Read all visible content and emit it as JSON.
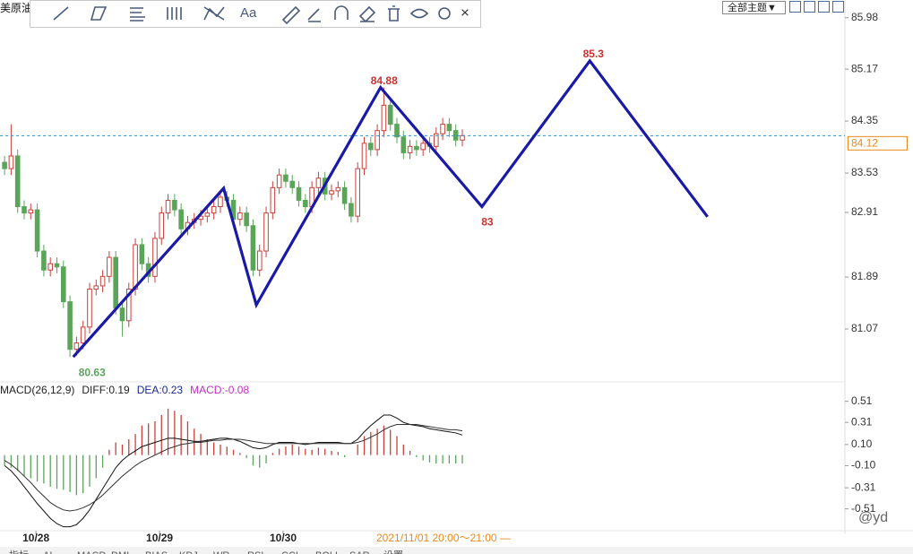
{
  "symbol": "美原油",
  "toolbar": {
    "font_button": "Aa",
    "close": "×"
  },
  "theme_button": "全部主题▼",
  "time_label": "2021/11/01 20:00～21:00 —",
  "tabs": [
    "指标",
    "AI",
    "MACD",
    "DMI",
    "BIAS",
    "KDJ",
    "WR",
    "RSI",
    "CCI",
    "BOLL",
    "SAR",
    "设置"
  ],
  "watermark": "@yd",
  "chart_data": [
    {
      "type": "candlestick",
      "up_color": "#c9403c",
      "down_color": "#5aa55a",
      "xlim": [
        -0.7,
        128.1
      ],
      "ylim": [
        80.25,
        86.26
      ],
      "yticks": [
        85.98,
        85.17,
        84.35,
        83.53,
        82.91,
        81.89,
        81.07
      ],
      "xticks": [
        {
          "value": 4.8,
          "label": "10/28"
        },
        {
          "value": 23.7,
          "label": "10/29"
        },
        {
          "value": 42.6,
          "label": "10/30"
        }
      ],
      "last": 84.12,
      "x": [
        0,
        1,
        2,
        3,
        4,
        5,
        6,
        7,
        8,
        9,
        10,
        11,
        12,
        13,
        14,
        15,
        16,
        17,
        18,
        19,
        20,
        21,
        22,
        23,
        24,
        25,
        26,
        27,
        28,
        29,
        30,
        31,
        32,
        33,
        34,
        35,
        36,
        37,
        38,
        39,
        40,
        41,
        42,
        43,
        44,
        45,
        46,
        47,
        48,
        49,
        50,
        51,
        52,
        53,
        54,
        55,
        56,
        57,
        58,
        59,
        60,
        61,
        62,
        63,
        64,
        65,
        66,
        67,
        68,
        69,
        70
      ],
      "open": [
        83.7,
        83.6,
        83.8,
        83.0,
        82.9,
        82.95,
        82.3,
        82.0,
        82.1,
        82.05,
        81.5,
        80.75,
        80.85,
        81.1,
        81.7,
        81.75,
        81.9,
        82.2,
        81.4,
        81.2,
        81.7,
        82.4,
        82.1,
        81.9,
        82.5,
        82.9,
        83.1,
        82.95,
        82.65,
        82.75,
        82.8,
        82.85,
        82.9,
        83.0,
        83.15,
        83.1,
        82.8,
        82.9,
        82.7,
        82.0,
        82.3,
        82.9,
        83.3,
        83.5,
        83.4,
        83.3,
        83.1,
        83.0,
        83.3,
        83.45,
        83.2,
        83.25,
        83.3,
        83.05,
        82.85,
        83.6,
        84.0,
        83.9,
        84.2,
        84.6,
        84.3,
        84.1,
        83.85,
        83.95,
        83.9,
        84.0,
        83.95,
        84.15,
        84.3,
        84.2,
        84.05
      ],
      "high": [
        83.8,
        84.3,
        83.9,
        83.1,
        83.05,
        83.05,
        82.4,
        82.2,
        82.2,
        82.15,
        81.6,
        80.95,
        81.2,
        81.8,
        81.85,
        82.0,
        82.3,
        82.3,
        81.5,
        81.8,
        82.5,
        82.5,
        82.2,
        82.6,
        83.0,
        83.2,
        83.2,
        83.05,
        82.85,
        82.9,
        82.95,
        83.0,
        83.1,
        83.25,
        83.25,
        83.2,
        83.0,
        83.0,
        82.8,
        82.4,
        83.0,
        83.4,
        83.6,
        83.6,
        83.5,
        83.4,
        83.2,
        83.4,
        83.55,
        83.55,
        83.35,
        83.4,
        83.4,
        83.15,
        83.7,
        84.1,
        84.1,
        84.3,
        84.88,
        84.7,
        84.4,
        84.2,
        84.05,
        84.05,
        84.1,
        84.1,
        84.25,
        84.4,
        84.4,
        84.3,
        84.22
      ],
      "low": [
        83.5,
        83.5,
        82.9,
        82.8,
        82.8,
        82.2,
        81.9,
        81.9,
        81.95,
        81.4,
        80.63,
        80.65,
        80.75,
        81.0,
        81.6,
        81.65,
        81.8,
        81.3,
        80.95,
        81.1,
        81.6,
        82.0,
        81.8,
        81.8,
        82.4,
        82.8,
        82.85,
        82.55,
        82.55,
        82.65,
        82.7,
        82.75,
        82.8,
        82.9,
        83.0,
        82.7,
        82.7,
        82.6,
        81.9,
        81.9,
        82.2,
        82.8,
        83.2,
        83.3,
        83.2,
        83.0,
        82.9,
        82.9,
        83.2,
        83.1,
        83.1,
        83.15,
        82.95,
        82.75,
        82.75,
        83.5,
        83.8,
        83.8,
        84.1,
        84.2,
        84.0,
        83.75,
        83.75,
        83.8,
        83.8,
        83.85,
        83.85,
        84.05,
        84.1,
        83.95,
        83.95
      ],
      "close": [
        83.6,
        83.8,
        83.0,
        82.9,
        82.95,
        82.3,
        82.0,
        82.1,
        82.05,
        81.5,
        80.75,
        80.85,
        81.1,
        81.7,
        81.75,
        81.9,
        82.2,
        81.4,
        81.2,
        81.7,
        82.4,
        82.1,
        81.9,
        82.5,
        82.9,
        83.1,
        82.95,
        82.65,
        82.75,
        82.8,
        82.85,
        82.9,
        83.0,
        83.15,
        83.1,
        82.8,
        82.9,
        82.7,
        82.0,
        82.3,
        82.9,
        83.3,
        83.5,
        83.4,
        83.3,
        83.1,
        83.0,
        83.3,
        83.45,
        83.2,
        83.25,
        83.3,
        83.05,
        82.85,
        83.6,
        84.0,
        83.9,
        84.2,
        84.6,
        84.3,
        84.1,
        83.85,
        83.95,
        83.9,
        84.0,
        83.95,
        84.15,
        84.3,
        84.2,
        84.05,
        84.12
      ],
      "projection": {
        "color": "#1a1aa6",
        "x": [
          10.5,
          33.5,
          38.5,
          57.5,
          73,
          89.5,
          107.5
        ],
        "values": [
          80.63,
          83.29,
          81.45,
          84.88,
          83,
          85.3,
          82.84
        ],
        "value_labels": [
          "80.63",
          null,
          null,
          "84.88",
          "83",
          "85.3",
          null
        ],
        "value_label_colors": [
          "#5aa55a",
          null,
          null,
          "#c83232",
          "#c83232",
          "#c83232",
          null
        ]
      }
    },
    {
      "type": "macd",
      "header": [
        {
          "text": "MACD(26,12,9)",
          "color": "#222222"
        },
        {
          "text": "DIFF:0.19",
          "color": "#222222"
        },
        {
          "text": "DEA:0.23",
          "color": "#1a2a8a"
        },
        {
          "text": "MACD:-0.08",
          "color": "#c030c0"
        }
      ],
      "xlim": [
        -0.7,
        128.1
      ],
      "ylim": [
        -0.7,
        0.66
      ],
      "yticks": [
        0.51,
        0.31,
        {
          "value": 0.1,
          "label": "0.10"
        },
        {
          "value": -0.1,
          "label": "-0.10"
        },
        -0.31,
        -0.51
      ],
      "x": [
        0,
        1,
        2,
        3,
        4,
        5,
        6,
        7,
        8,
        9,
        10,
        11,
        12,
        13,
        14,
        15,
        16,
        17,
        18,
        19,
        20,
        21,
        22,
        23,
        24,
        25,
        26,
        27,
        28,
        29,
        30,
        31,
        32,
        33,
        34,
        35,
        36,
        37,
        38,
        39,
        40,
        41,
        42,
        43,
        44,
        45,
        46,
        47,
        48,
        49,
        50,
        51,
        52,
        53,
        54,
        55,
        56,
        57,
        58,
        59,
        60,
        61,
        62,
        63,
        64,
        65,
        66,
        67,
        68,
        69,
        70
      ],
      "histogram": {
        "up_color": "#c9403c",
        "down_color": "#5aa55a",
        "values": [
          -0.1,
          -0.12,
          -0.15,
          -0.2,
          -0.22,
          -0.25,
          -0.27,
          -0.3,
          -0.32,
          -0.33,
          -0.35,
          -0.38,
          -0.36,
          -0.3,
          -0.22,
          -0.12,
          0.05,
          0.12,
          0.1,
          0.15,
          0.2,
          0.28,
          0.3,
          0.32,
          0.38,
          0.44,
          0.42,
          0.38,
          0.32,
          0.25,
          0.2,
          0.15,
          0.12,
          0.1,
          0.08,
          0.05,
          0.02,
          -0.03,
          -0.1,
          -0.12,
          -0.08,
          0.02,
          0.06,
          0.08,
          0.1,
          0.08,
          0.06,
          0.05,
          0.07,
          0.06,
          0.04,
          0.03,
          -0.02,
          0,
          0.1,
          0.18,
          0.22,
          0.25,
          0.28,
          0.24,
          0.18,
          0.1,
          0.04,
          -0.02,
          -0.05,
          -0.07,
          -0.08,
          -0.08,
          -0.08,
          -0.08,
          -0.08
        ]
      },
      "series": [
        {
          "color": "#111111",
          "values": [
            -0.1,
            -0.15,
            -0.22,
            -0.3,
            -0.38,
            -0.46,
            -0.53,
            -0.6,
            -0.65,
            -0.68,
            -0.68,
            -0.66,
            -0.6,
            -0.52,
            -0.42,
            -0.32,
            -0.22,
            -0.12,
            -0.05,
            0,
            0.04,
            0.08,
            0.1,
            0.12,
            0.14,
            0.16,
            0.16,
            0.15,
            0.14,
            0.13,
            0.13,
            0.14,
            0.15,
            0.16,
            0.16,
            0.15,
            0.13,
            0.1,
            0.07,
            0.06,
            0.07,
            0.1,
            0.12,
            0.12,
            0.12,
            0.11,
            0.1,
            0.11,
            0.12,
            0.12,
            0.12,
            0.12,
            0.11,
            0.11,
            0.15,
            0.22,
            0.28,
            0.33,
            0.38,
            0.38,
            0.35,
            0.31,
            0.29,
            0.28,
            0.27,
            0.25,
            0.24,
            0.23,
            0.22,
            0.21,
            0.19
          ]
        },
        {
          "color": "#333333",
          "values": [
            -0.05,
            -0.09,
            -0.14,
            -0.2,
            -0.26,
            -0.33,
            -0.39,
            -0.45,
            -0.49,
            -0.52,
            -0.53,
            -0.52,
            -0.5,
            -0.47,
            -0.43,
            -0.38,
            -0.32,
            -0.26,
            -0.2,
            -0.15,
            -0.1,
            -0.06,
            -0.03,
            0,
            0.03,
            0.06,
            0.08,
            0.1,
            0.11,
            0.12,
            0.12,
            0.13,
            0.14,
            0.14,
            0.15,
            0.15,
            0.15,
            0.14,
            0.13,
            0.12,
            0.11,
            0.11,
            0.11,
            0.11,
            0.11,
            0.11,
            0.11,
            0.11,
            0.11,
            0.11,
            0.11,
            0.11,
            0.11,
            0.11,
            0.12,
            0.14,
            0.17,
            0.2,
            0.24,
            0.27,
            0.29,
            0.29,
            0.29,
            0.29,
            0.28,
            0.27,
            0.26,
            0.25,
            0.24,
            0.24,
            0.23
          ]
        }
      ]
    }
  ]
}
